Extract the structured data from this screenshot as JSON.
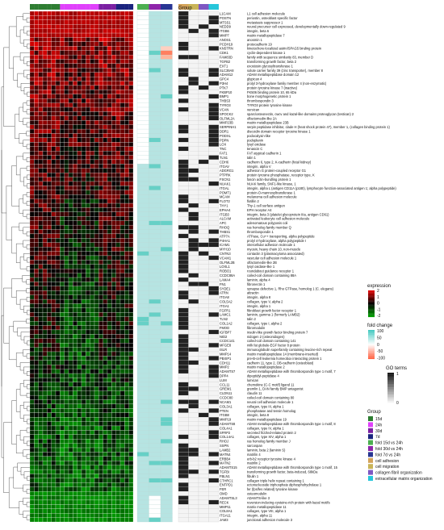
{
  "chart_data": {
    "type": "heatmap",
    "title": "",
    "column_annotation_label": "Group",
    "genes": [
      [
        "L1CAM",
        "L1 cell adhesion molecule"
      ],
      [
        "POSTN",
        "periostin, osteoblast specific factor"
      ],
      [
        "MTSS1",
        "metastasis suppressor 1"
      ],
      [
        "NEDD9",
        "neural precursor cell expressed, developmentally down-regulated 9"
      ],
      [
        "ITGB6",
        "integrin, beta 6"
      ],
      [
        "MMP7",
        "matrix metallopeptidase 7"
      ],
      [
        "ANOS1",
        "anosmin 1"
      ],
      [
        "PCDH19",
        "protocadherin 19"
      ],
      [
        "KNSTRN",
        "kinetochore-localized astrin/SPAG5 binding protein"
      ],
      [
        "CDK1",
        "cyclin-dependent kinase 1"
      ],
      [
        "FAM83D",
        "family with sequence similarity 83, member D"
      ],
      [
        "TGFB2",
        "transforming growth factor, beta 2"
      ],
      [
        "EXT1",
        "exostosin glycosyltransferase 1"
      ],
      [
        "SLC39A8",
        "solute carrier family 39 (zinc transporter), member 8"
      ],
      [
        "ADAM12",
        "ADAM metallopeptidase domain 12"
      ],
      [
        "GPC4",
        "glypican 4"
      ],
      [
        "P3H4",
        "prolyl 3-hydroxylase family member 4 (non-enzymatic)"
      ],
      [
        "PTK7",
        "protein tyrosine kinase 7 (inactive)"
      ],
      [
        "FKBP10",
        "FK506 binding protein 10, 65 kDa"
      ],
      [
        "BMP1",
        "bone morphogenetic protein 1"
      ],
      [
        "THBS3",
        "thrombospondin 3"
      ],
      [
        "TYRO3",
        "TYRO3 protein tyrosine kinase"
      ],
      [
        "VCAN",
        "versican"
      ],
      [
        "SPOCK2",
        "sparc/osteonectin, cwcv and kazal-like domains proteoglycan (testican) 2"
      ],
      [
        "OLFML2A",
        "olfactomedin-like 2A"
      ],
      [
        "MMP23B",
        "matrix metallopeptidase 23B"
      ],
      [
        "SERPINH1",
        "serpin peptidase inhibitor, clade H (heat shock protein 47), member 1, (collagen binding protein 1)"
      ],
      [
        "DDR1",
        "discoidin domain receptor tyrosine kinase 1"
      ],
      [
        "PODXL",
        "podocalyxin-like"
      ],
      [
        "PDPN",
        "podoplanin"
      ],
      [
        "LOX",
        "lysyl oxidase"
      ],
      [
        "TNC",
        "tenascin C"
      ],
      [
        "FAT1",
        "FAT atypical cadherin 1"
      ],
      [
        "TLN1",
        "talin 1"
      ],
      [
        "CDH6",
        "cadherin 6, type 2, K-cadherin (fetal kidney)"
      ],
      [
        "ITGAV",
        "integrin, alpha V"
      ],
      [
        "ADGRG1",
        "adhesion G protein-coupled receptor G1"
      ],
      [
        "PTPRK",
        "protein tyrosine phosphatase, receptor type, K"
      ],
      [
        "FSCN1",
        "fascin actin-bundling protein 1"
      ],
      [
        "NUAK1",
        "NUAK family, SNF1-like kinase, 1"
      ],
      [
        "ITGAL",
        "integrin, alpha L (antigen CD11A (p180), lymphocyte function-associated antigen 1; alpha polypeptide)"
      ],
      [
        "POMT1",
        "protein-O-mannosyltransferase 1"
      ],
      [
        "MCAM",
        "melanoma cell adhesion molecule"
      ],
      [
        "FLOT2",
        "flotillin 2"
      ],
      [
        "THY1",
        "Thy-1 cell surface antigen"
      ],
      [
        "EPHA4",
        "EPH receptor A4"
      ],
      [
        "ITGB3",
        "integrin, beta 3 (platelet glycoprotein IIIa, antigen CD61)"
      ],
      [
        "ALCAM",
        "activated leukocyte cell adhesion molecule"
      ],
      [
        "APC",
        "adenomatous polyposis coli"
      ],
      [
        "RHOQ",
        "ras homolog family member Q"
      ],
      [
        "THBS1",
        "thrombospondin 1"
      ],
      [
        "ATP7A",
        "ATPase, Cu++ transporting, alpha polypeptide"
      ],
      [
        "P4HA1",
        "prolyl 4-hydroxylase, alpha polypeptide I"
      ],
      [
        "ICAM1",
        "intercellular adhesion molecule 1"
      ],
      [
        "MYH10",
        "myosin, heavy chain 10, non-muscle"
      ],
      [
        "CNTN3",
        "contactin 3 (plasmacytoma associated)"
      ],
      [
        "VCAM1",
        "vascular cell adhesion molecule 1"
      ],
      [
        "OLFML2B",
        "olfactomedin-like 2B"
      ],
      [
        "LOXL1",
        "lysyl oxidase-like 1"
      ],
      [
        "ROBO1",
        "roundabout guidance receptor 1"
      ],
      [
        "CCDC88A",
        "coiled-coil domain containing 88A"
      ],
      [
        "LAMA4",
        "laminin, alpha 4"
      ],
      [
        "FN1",
        "fibronectin 1"
      ],
      [
        "SYDE1",
        "synapse defective 1, Rho GTPase, homolog 1 (C. elegans)"
      ],
      [
        "ATRN",
        "attractin"
      ],
      [
        "ITGA8",
        "integrin, alpha 8"
      ],
      [
        "COL5A2",
        "collagen, type V, alpha 2"
      ],
      [
        "ITGA1",
        "integrin, alpha 1"
      ],
      [
        "FGFR1",
        "fibroblast growth factor receptor 1"
      ],
      [
        "LAMC1",
        "laminin, gamma 1 (formerly LAMB2)"
      ],
      [
        "TLN2",
        "talin 2"
      ],
      [
        "COL1A2",
        "collagen, type I, alpha 2"
      ],
      [
        "FMOD",
        "fibromodulin"
      ],
      [
        "IGFBP7",
        "insulin-like growth factor binding protein 7"
      ],
      [
        "NID2",
        "nidogen 2 (osteonidogen)"
      ],
      [
        "CCDC141",
        "coiled-coil domain containing 141"
      ],
      [
        "MFGE8",
        "milk fat globule-EGF factor 8 protein"
      ],
      [
        "ISLR",
        "immunoglobulin superfamily containing leucine-rich repeat"
      ],
      [
        "MMP14",
        "matrix metallopeptidase 14 (membrane-inserted)"
      ],
      [
        "PBXIP1",
        "pre-B-cell leukemia homeobox interacting protein 1"
      ],
      [
        "CDH11",
        "cadherin 11, type 2, OB-cadherin (osteoblast)"
      ],
      [
        "MMP2",
        "matrix metallopeptidase 2"
      ],
      [
        "ADAMTS7",
        "ADAM metallopeptidase with thrombospondin type 1 motif, 7"
      ],
      [
        "DPP4",
        "dipeptidyl-peptidase 4"
      ],
      [
        "LUM",
        "lumican"
      ],
      [
        "CCL11",
        "chemokine (C-C motif) ligand 11"
      ],
      [
        "GREM1",
        "gremlin 1, DAN family BMP antagonist"
      ],
      [
        "CLDN11",
        "claudin 11"
      ],
      [
        "CCDC80",
        "coiled-coil domain containing 80"
      ],
      [
        "NCAM1",
        "neural cell adhesion molecule 1"
      ],
      [
        "COL3A1",
        "collagen, type III, alpha 1"
      ],
      [
        "PTEN",
        "phosphatase and tensin homolog"
      ],
      [
        "ITGB8",
        "integrin, beta 8"
      ],
      [
        "MMP19",
        "matrix metallopeptidase 19"
      ],
      [
        "ADAMTS8",
        "ADAM metallopeptidase with thrombospondin type 1 motif, 8"
      ],
      [
        "COL4A1",
        "collagen, type IV, alpha 1"
      ],
      [
        "SFRP2",
        "secreted frizzled-related protein 2"
      ],
      [
        "COL14A1",
        "collagen, type XIV, alpha 1"
      ],
      [
        "RHOJ",
        "ras homolog family member J"
      ],
      [
        "SSPN",
        "sarcospan"
      ],
      [
        "LAMB2",
        "laminin, beta 2 (laminin S)"
      ],
      [
        "MATN4",
        "matrilin 4"
      ],
      [
        "ERBB4",
        "erb-b2 receptor tyrosine kinase 4"
      ],
      [
        "MATN2",
        "matrilin 2"
      ],
      [
        "ADAMTS15",
        "ADAM metallopeptidase with thrombospondin type 1 motif, 15"
      ],
      [
        "TGFBI",
        "transforming growth factor, beta-induced, 68kDa"
      ],
      [
        "FBLN1",
        "fibulin 1"
      ],
      [
        "CTHRC1",
        "collagen triple helix repeat containing 1"
      ],
      [
        "ENTPD1",
        "ectonucleoside triphosphate diphosphohydrolase 1"
      ],
      [
        "FER",
        "fer (fps/fes related) tyrosine kinase"
      ],
      [
        "OMD",
        "osteomodulin"
      ],
      [
        "ADAMTSL3",
        "ADAMTS-like 3"
      ],
      [
        "RECK",
        "reversion-inducing-cysteine-rich protein with kazal motifs"
      ],
      [
        "MMP11",
        "matrix metallopeptidase 11"
      ],
      [
        "COL8A1",
        "collagen, type VIII, alpha 1"
      ],
      [
        "ITGA11",
        "integrin, alpha 11"
      ],
      [
        "JAM3",
        "junctional adhesion molecule 3"
      ]
    ],
    "column_groups": [
      {
        "label": "15d",
        "color": "#2e7d32",
        "n": 7
      },
      {
        "label": "24h",
        "color": "#e040fb",
        "n": 9
      },
      {
        "label": "30d",
        "color": "#7b1fa2",
        "n": 4
      },
      {
        "label": "7d",
        "color": "#1a237e",
        "n": 4
      }
    ],
    "fold_change_columns": [
      {
        "label": "fold 15d vs 24h",
        "color": "#4caf50"
      },
      {
        "label": "fold 30d vs 24h",
        "color": "#8e24aa"
      },
      {
        "label": "fold 7d vs 24h",
        "color": "#283593"
      }
    ],
    "go_term_columns": [
      {
        "label": "cell adhesion",
        "color": "#d4a35a"
      },
      {
        "label": "cell migration",
        "color": "#c9b458"
      },
      {
        "label": "collagen fibril organization",
        "color": "#7e57c2"
      },
      {
        "label": "extracellular matrix organization",
        "color": "#26c6da"
      }
    ],
    "legends": {
      "expression": {
        "title": "expression",
        "ticks": [
          "2",
          "1",
          "0",
          "-1",
          "-2"
        ],
        "range": [
          -2,
          2
        ],
        "colors": [
          "#00a000",
          "#000000",
          "#e00000"
        ]
      },
      "fold_change": {
        "title": "fold change",
        "ticks": [
          "100",
          "50",
          "0",
          "-50",
          "-100"
        ],
        "range": [
          -100,
          100
        ],
        "colors": [
          "#40c8c0",
          "#ffffff",
          "#ff6040"
        ]
      },
      "go_terms": {
        "title": "GO terms",
        "ticks": [
          "1",
          "0"
        ],
        "range": [
          0,
          1
        ],
        "colors": [
          "#ffffff",
          "#111111"
        ]
      },
      "group": {
        "title": "Group",
        "entries": [
          "15d",
          "24h",
          "30d",
          "7d",
          "fold 15d vs 24h",
          "fold 30d vs 24h",
          "fold 7d vs 24h",
          "cell adhesion",
          "cell migration",
          "collagen fibril organization",
          "extracellular matrix organization"
        ]
      }
    },
    "colors": {
      "go_on": "#222222",
      "go_off": "#f4f4f4",
      "fc_default": "#b6e4e2",
      "fc_up": "#66d0c6",
      "fc_down": "#ff7f5f"
    }
  }
}
